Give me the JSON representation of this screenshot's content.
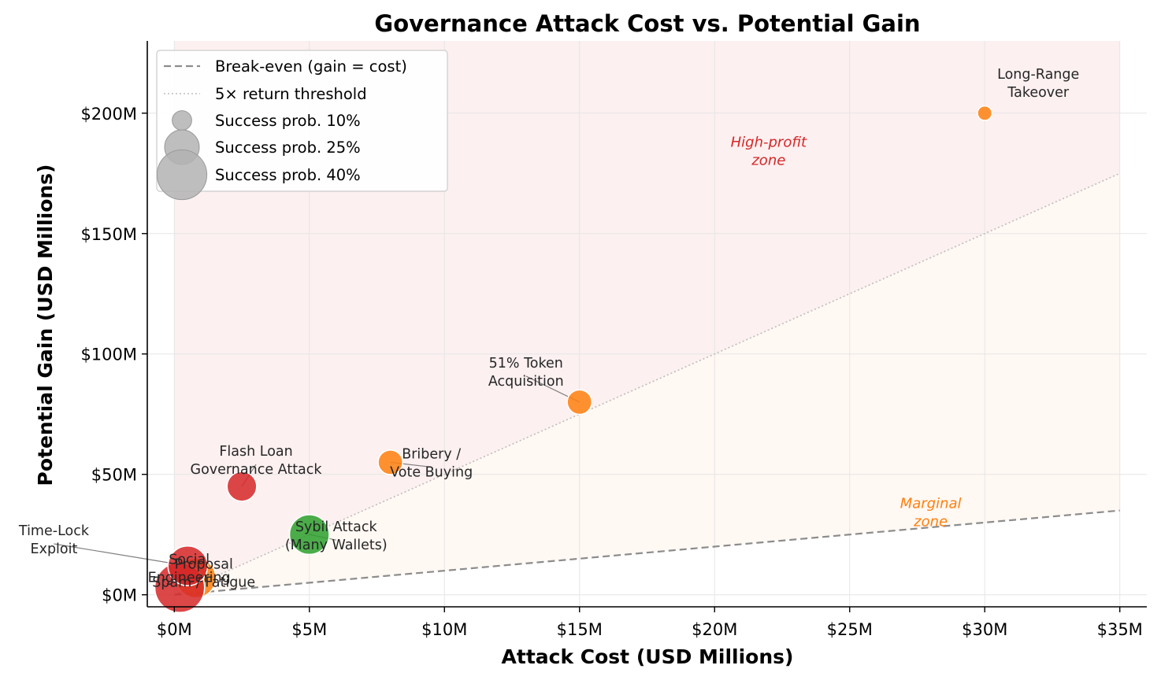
{
  "chart_data": {
    "type": "scatter",
    "title": "Governance Attack Cost vs. Potential Gain",
    "xlabel": "Attack Cost (USD Millions)",
    "ylabel": "Potential Gain (USD Millions)",
    "xlim": [
      -1,
      36
    ],
    "ylim": [
      -5,
      230
    ],
    "x_ticks": [
      0,
      5,
      10,
      15,
      20,
      25,
      30,
      35
    ],
    "x_tick_labels": [
      "$0M",
      "$5M",
      "$10M",
      "$15M",
      "$20M",
      "$25M",
      "$30M",
      "$35M"
    ],
    "y_ticks": [
      0,
      50,
      100,
      150,
      200
    ],
    "y_tick_labels": [
      "$0M",
      "$50M",
      "$100M",
      "$150M",
      "$200M"
    ],
    "grid": true,
    "lines": [
      {
        "name": "Break-even (gain = cost)",
        "slope": 1,
        "style": "dashed",
        "color": "#8c8c8c"
      },
      {
        "name": "5× return threshold",
        "slope": 5,
        "style": "dotted",
        "color": "#bdbdbd"
      }
    ],
    "zones": [
      {
        "label": "High-profit zone",
        "label_lines": [
          "High-profit",
          "zone"
        ],
        "color": "#d62728",
        "label_x": 22,
        "label_y": 186
      },
      {
        "label": "Marginal zone",
        "label_lines": [
          "Marginal",
          "zone"
        ],
        "color": "#ff7f0e",
        "label_x": 28,
        "label_y": 36
      }
    ],
    "points": [
      {
        "name": "Long-Range Takeover",
        "label_lines": [
          "Long-Range",
          "Takeover"
        ],
        "x": 30,
        "y": 200,
        "prob": 0.05,
        "color": "#ff7f0e"
      },
      {
        "name": "51% Token Acquisition",
        "label_lines": [
          "51% Token",
          "Acquisition"
        ],
        "x": 15,
        "y": 80,
        "prob": 0.15,
        "color": "#ff7f0e"
      },
      {
        "name": "Bribery / Vote Buying",
        "label_lines": [
          "Bribery /",
          "Vote Buying"
        ],
        "x": 8,
        "y": 55,
        "prob": 0.15,
        "color": "#ff7f0e"
      },
      {
        "name": "Flash Loan Governance Attack",
        "label_lines": [
          "Flash Loan",
          "Governance Attack"
        ],
        "x": 2.5,
        "y": 45,
        "prob": 0.2,
        "color": "#d62728"
      },
      {
        "name": "Sybil Attack (Many Wallets)",
        "label_lines": [
          "Sybil Attack",
          "(Many Wallets)"
        ],
        "x": 5,
        "y": 25,
        "prob": 0.3,
        "color": "#2ca02c"
      },
      {
        "name": "Proposal Spam / Fatigue",
        "label_lines": [
          "Proposal",
          "Spam / Fatigue"
        ],
        "x": 0.8,
        "y": 7,
        "prob": 0.3,
        "color": "#ff7f0e"
      },
      {
        "name": "Social Engineering",
        "label_lines": [
          "Social",
          "Engineering"
        ],
        "x": 0.2,
        "y": 3,
        "prob": 0.4,
        "color": "#d62728"
      },
      {
        "name": "Time-Lock Exploit",
        "label_lines": [
          "Time-Lock",
          "Exploit"
        ],
        "x": 0.5,
        "y": 12,
        "prob": 0.3,
        "color": "#d62728"
      }
    ],
    "legend": {
      "placement": "top-left",
      "entries": [
        {
          "label": "Break-even (gain = cost)",
          "kind": "dashed-line"
        },
        {
          "label": "5× return threshold",
          "kind": "dotted-line"
        },
        {
          "label": "Success prob. 10%",
          "kind": "size",
          "prob": 0.1
        },
        {
          "label": "Success prob. 25%",
          "kind": "size",
          "prob": 0.25
        },
        {
          "label": "Success prob. 40%",
          "kind": "size",
          "prob": 0.4
        }
      ]
    }
  }
}
